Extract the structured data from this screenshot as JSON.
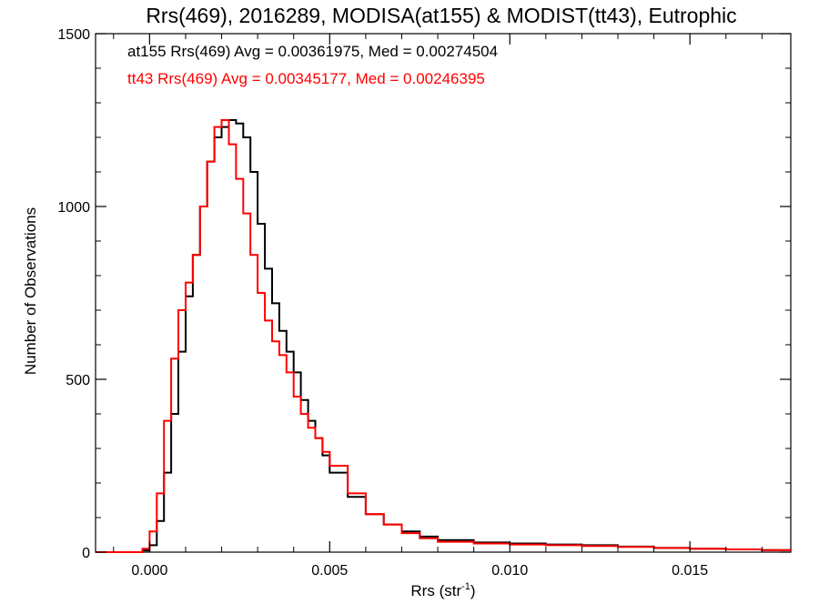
{
  "chart_data": {
    "type": "line",
    "step": true,
    "title": "Rrs(469), 2016289, MODISA(at155) & MODIST(tt43), Eutrophic",
    "xlabel_base": "Rrs (str",
    "xlabel_sup": "-1",
    "xlabel_end": ")",
    "ylabel": "Number of Observations",
    "xlim": [
      -0.0015,
      0.0178
    ],
    "ylim": [
      0,
      1500
    ],
    "xticks": [
      0.0,
      0.005,
      0.01,
      0.015
    ],
    "xtick_labels": [
      "0.000",
      "0.005",
      "0.010",
      "0.015"
    ],
    "yticks": [
      0,
      500,
      1000,
      1500
    ],
    "ytick_labels": [
      "0",
      "500",
      "1000",
      "1500"
    ],
    "grid": false,
    "annotations": [
      {
        "text": "at155 Rrs(469) Avg = 0.00361975, Med = 0.00274504",
        "color": "#000000"
      },
      {
        "text": "tt43 Rrs(469) Avg = 0.00345177, Med = 0.00246395",
        "color": "#ff0000"
      }
    ],
    "series": [
      {
        "color": "#000000",
        "x": [
          -0.0015,
          -0.0005,
          -0.0002,
          0.0,
          0.0002,
          0.0004,
          0.0006,
          0.0008,
          0.001,
          0.0012,
          0.0014,
          0.0016,
          0.0018,
          0.002,
          0.0022,
          0.0024,
          0.0026,
          0.0028,
          0.003,
          0.0032,
          0.0034,
          0.0036,
          0.0038,
          0.004,
          0.0042,
          0.0044,
          0.0046,
          0.0048,
          0.005,
          0.0055,
          0.006,
          0.0065,
          0.007,
          0.0075,
          0.008,
          0.009,
          0.01,
          0.011,
          0.012,
          0.013,
          0.014,
          0.015,
          0.016,
          0.017,
          0.0178
        ],
        "y": [
          0,
          0,
          5,
          20,
          90,
          230,
          400,
          580,
          740,
          860,
          1000,
          1130,
          1200,
          1230,
          1250,
          1240,
          1200,
          1100,
          950,
          820,
          720,
          640,
          580,
          520,
          440,
          380,
          330,
          280,
          230,
          160,
          110,
          80,
          60,
          45,
          35,
          28,
          25,
          22,
          20,
          16,
          12,
          10,
          8,
          6,
          5
        ]
      },
      {
        "color": "#ff0000",
        "x": [
          -0.0015,
          -0.0005,
          -0.0002,
          0.0,
          0.0002,
          0.0004,
          0.0006,
          0.0008,
          0.001,
          0.0012,
          0.0014,
          0.0016,
          0.0018,
          0.002,
          0.0022,
          0.0024,
          0.0026,
          0.0028,
          0.003,
          0.0032,
          0.0034,
          0.0036,
          0.0038,
          0.004,
          0.0042,
          0.0044,
          0.0046,
          0.0048,
          0.005,
          0.0055,
          0.006,
          0.0065,
          0.007,
          0.0075,
          0.008,
          0.009,
          0.01,
          0.011,
          0.012,
          0.013,
          0.014,
          0.015,
          0.016,
          0.017,
          0.0178
        ],
        "y": [
          0,
          0,
          10,
          60,
          170,
          380,
          560,
          700,
          780,
          860,
          1000,
          1130,
          1230,
          1250,
          1180,
          1080,
          980,
          860,
          750,
          670,
          610,
          570,
          520,
          450,
          400,
          360,
          330,
          290,
          250,
          170,
          110,
          80,
          55,
          40,
          30,
          25,
          22,
          20,
          18,
          15,
          12,
          10,
          8,
          6,
          5
        ]
      }
    ]
  }
}
